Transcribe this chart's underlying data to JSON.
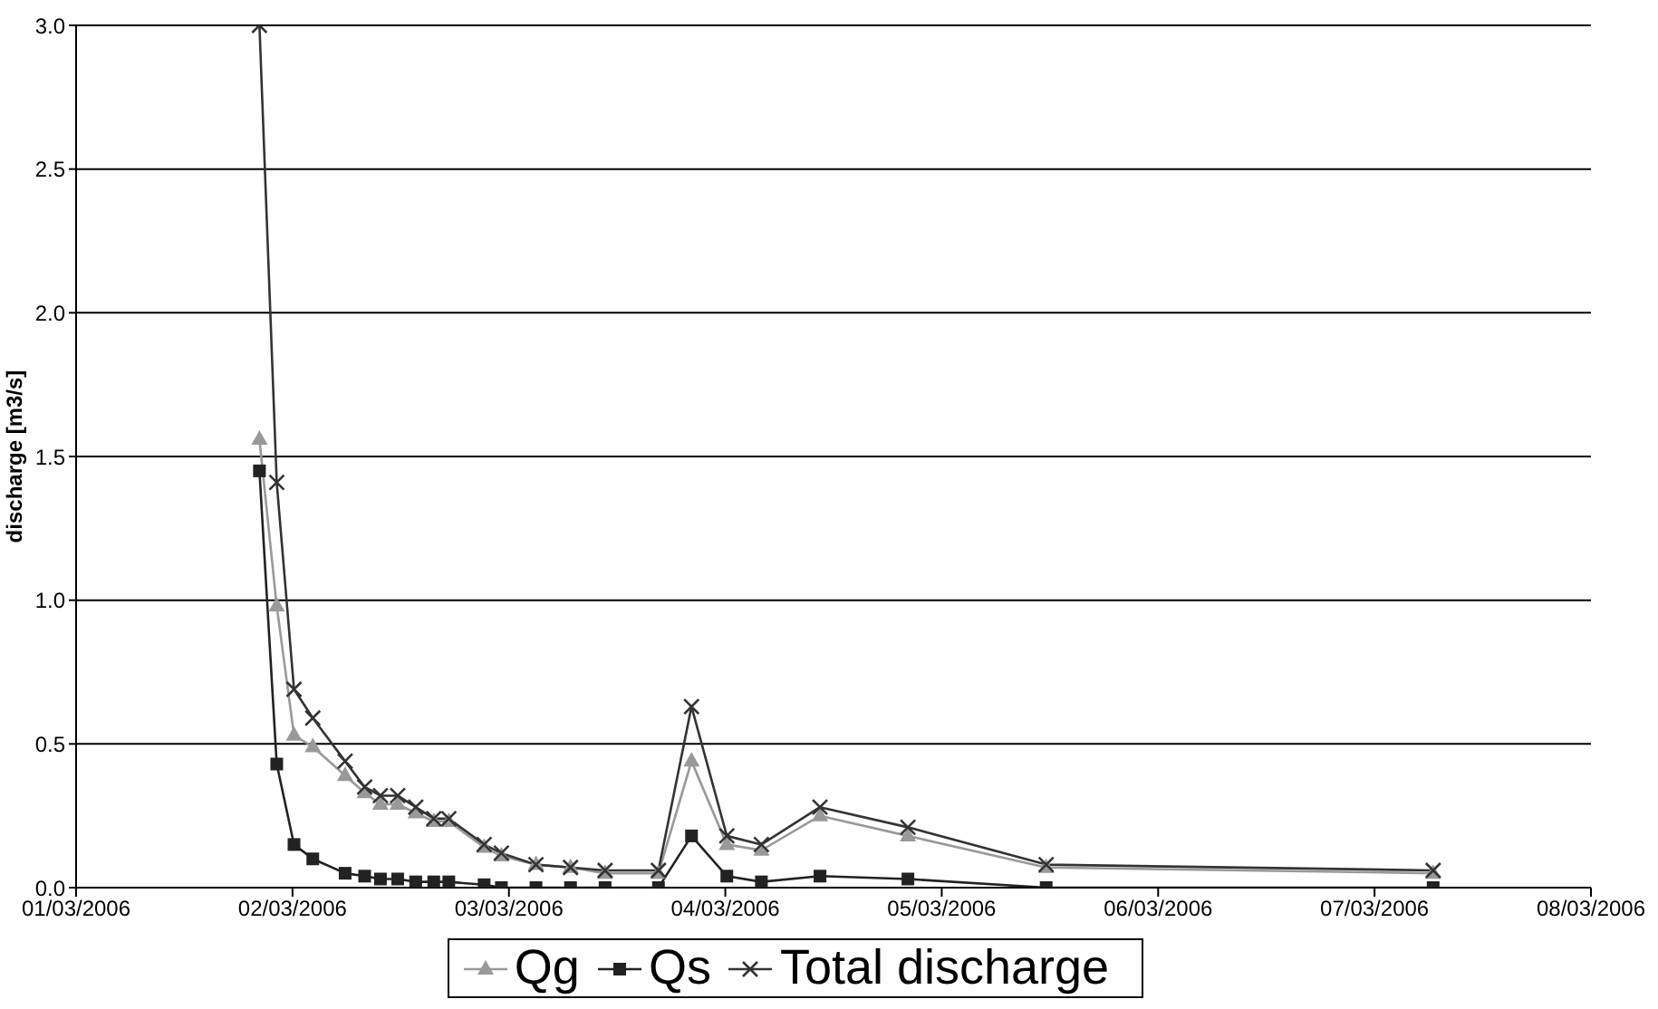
{
  "chart_data": {
    "type": "line",
    "ylabel": "discharge [m3/s]",
    "x": [
      "2006-03-01T20:20",
      "2006-03-01T22:15",
      "2006-03-02T00:10",
      "2006-03-02T02:15",
      "2006-03-02T05:50",
      "2006-03-02T08:00",
      "2006-03-02T09:45",
      "2006-03-02T11:40",
      "2006-03-02T13:40",
      "2006-03-02T15:40",
      "2006-03-02T17:20",
      "2006-03-02T21:15",
      "2006-03-02T23:10",
      "2006-03-03T03:00",
      "2006-03-03T06:50",
      "2006-03-03T10:40",
      "2006-03-03T16:35",
      "2006-03-03T20:15",
      "2006-03-04T00:10",
      "2006-03-04T04:00",
      "2006-03-04T10:30",
      "2006-03-04T20:15",
      "2006-03-05T11:35",
      "2006-03-07T06:30"
    ],
    "series": [
      {
        "name": "Qg",
        "color": "#999999",
        "marker": "triangle",
        "values": [
          1.56,
          0.98,
          0.53,
          0.49,
          0.39,
          0.33,
          0.29,
          0.29,
          0.26,
          0.23,
          0.23,
          0.14,
          0.11,
          0.08,
          0.07,
          0.05,
          0.05,
          0.44,
          0.15,
          0.13,
          0.25,
          0.18,
          0.07,
          0.05
        ]
      },
      {
        "name": "Qs",
        "color": "#222222",
        "marker": "square",
        "values": [
          1.45,
          0.43,
          0.15,
          0.1,
          0.05,
          0.04,
          0.03,
          0.03,
          0.02,
          0.02,
          0.02,
          0.01,
          0,
          0,
          0,
          0,
          0,
          0.18,
          0.04,
          0.02,
          0.04,
          0.03,
          0,
          0
        ]
      },
      {
        "name": "Total discharge",
        "color": "#333333",
        "marker": "cross",
        "values": [
          3.0,
          1.41,
          0.69,
          0.59,
          0.44,
          0.35,
          0.32,
          0.32,
          0.28,
          0.24,
          0.24,
          0.15,
          0.12,
          0.08,
          0.07,
          0.06,
          0.06,
          0.63,
          0.18,
          0.15,
          0.28,
          0.21,
          0.08,
          0.06
        ]
      }
    ],
    "xlim": [
      "2006-03-01",
      "2006-03-08"
    ],
    "xticks": [
      {
        "value": "2006-03-01",
        "label": "01/03/2006"
      },
      {
        "value": "2006-03-02",
        "label": "02/03/2006"
      },
      {
        "value": "2006-03-03",
        "label": "03/03/2006"
      },
      {
        "value": "2006-03-04",
        "label": "04/03/2006"
      },
      {
        "value": "2006-03-05",
        "label": "05/03/2006"
      },
      {
        "value": "2006-03-06",
        "label": "06/03/2006"
      },
      {
        "value": "2006-03-07",
        "label": "07/03/2006"
      },
      {
        "value": "2006-03-08",
        "label": "08/03/2006"
      }
    ],
    "ylim": [
      0,
      3
    ],
    "yticks": [
      {
        "value": 0,
        "label": "0.0"
      },
      {
        "value": 0.5,
        "label": "0.5"
      },
      {
        "value": 1,
        "label": "1.0"
      },
      {
        "value": 1.5,
        "label": "1.5"
      },
      {
        "value": 2,
        "label": "2.0"
      },
      {
        "value": 2.5,
        "label": "2.5"
      },
      {
        "value": 3,
        "label": "3.0"
      }
    ],
    "grid": "y",
    "legend": "bottom"
  }
}
